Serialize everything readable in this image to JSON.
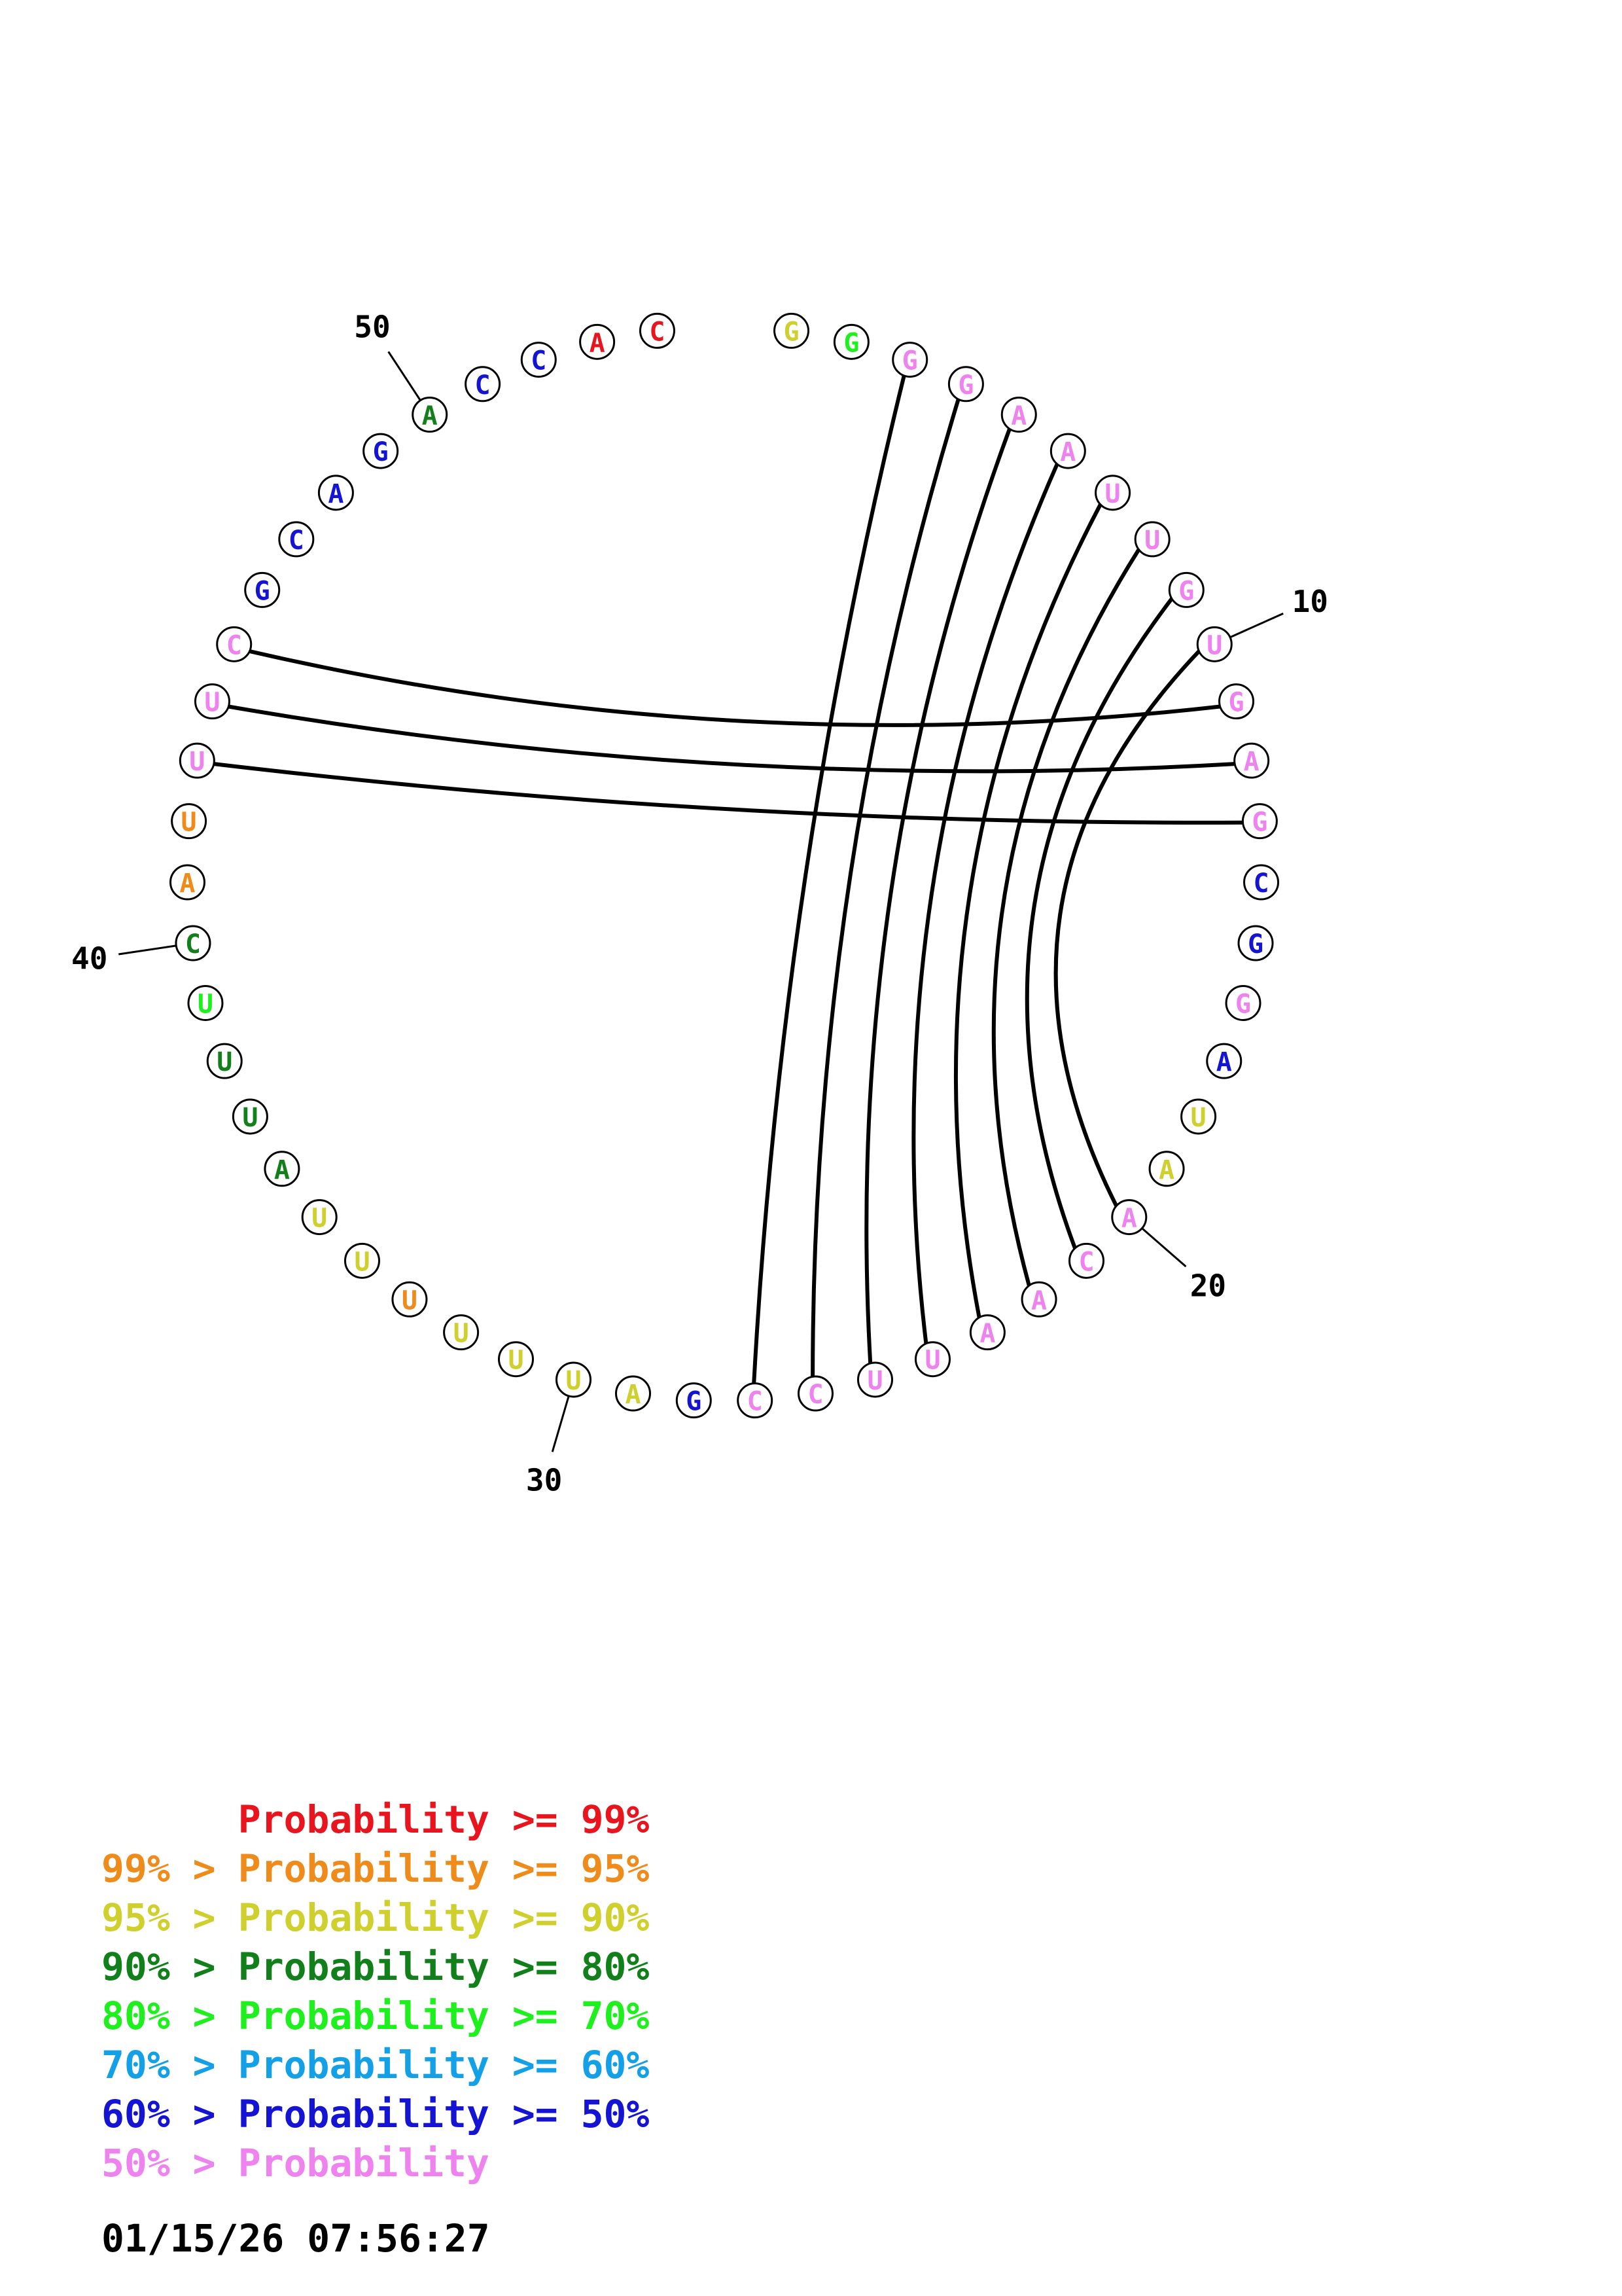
{
  "colors": {
    "red": "#e8141e",
    "orange": "#ef8b1b",
    "yellow": "#cfcf2e",
    "darkgreen": "#12801a",
    "green": "#1ef01e",
    "lightblue": "#14a0e6",
    "blue": "#1414d2",
    "pink": "#ee82ee"
  },
  "sequence": [
    {
      "letter": "G",
      "color": "yellow"
    },
    {
      "letter": "G",
      "color": "green"
    },
    {
      "letter": "G",
      "color": "pink"
    },
    {
      "letter": "G",
      "color": "pink"
    },
    {
      "letter": "A",
      "color": "pink"
    },
    {
      "letter": "A",
      "color": "pink"
    },
    {
      "letter": "U",
      "color": "pink"
    },
    {
      "letter": "U",
      "color": "pink"
    },
    {
      "letter": "G",
      "color": "pink"
    },
    {
      "letter": "U",
      "color": "pink"
    },
    {
      "letter": "G",
      "color": "pink"
    },
    {
      "letter": "A",
      "color": "pink"
    },
    {
      "letter": "G",
      "color": "pink"
    },
    {
      "letter": "C",
      "color": "blue"
    },
    {
      "letter": "G",
      "color": "blue"
    },
    {
      "letter": "G",
      "color": "pink"
    },
    {
      "letter": "A",
      "color": "blue"
    },
    {
      "letter": "U",
      "color": "yellow"
    },
    {
      "letter": "A",
      "color": "yellow"
    },
    {
      "letter": "A",
      "color": "pink"
    },
    {
      "letter": "C",
      "color": "pink"
    },
    {
      "letter": "A",
      "color": "pink"
    },
    {
      "letter": "A",
      "color": "pink"
    },
    {
      "letter": "U",
      "color": "pink"
    },
    {
      "letter": "U",
      "color": "pink"
    },
    {
      "letter": "C",
      "color": "pink"
    },
    {
      "letter": "C",
      "color": "pink"
    },
    {
      "letter": "G",
      "color": "blue"
    },
    {
      "letter": "A",
      "color": "yellow"
    },
    {
      "letter": "U",
      "color": "yellow"
    },
    {
      "letter": "U",
      "color": "yellow"
    },
    {
      "letter": "U",
      "color": "yellow"
    },
    {
      "letter": "U",
      "color": "orange"
    },
    {
      "letter": "U",
      "color": "yellow"
    },
    {
      "letter": "U",
      "color": "yellow"
    },
    {
      "letter": "A",
      "color": "darkgreen"
    },
    {
      "letter": "U",
      "color": "darkgreen"
    },
    {
      "letter": "U",
      "color": "darkgreen"
    },
    {
      "letter": "U",
      "color": "green"
    },
    {
      "letter": "C",
      "color": "darkgreen"
    },
    {
      "letter": "A",
      "color": "orange"
    },
    {
      "letter": "U",
      "color": "orange"
    },
    {
      "letter": "U",
      "color": "pink"
    },
    {
      "letter": "U",
      "color": "pink"
    },
    {
      "letter": "C",
      "color": "pink"
    },
    {
      "letter": "G",
      "color": "blue"
    },
    {
      "letter": "C",
      "color": "blue"
    },
    {
      "letter": "A",
      "color": "blue"
    },
    {
      "letter": "G",
      "color": "blue"
    },
    {
      "letter": "A",
      "color": "darkgreen"
    },
    {
      "letter": "C",
      "color": "blue"
    },
    {
      "letter": "C",
      "color": "blue"
    },
    {
      "letter": "A",
      "color": "red"
    },
    {
      "letter": "C",
      "color": "red"
    }
  ],
  "pairs": [
    [
      3,
      27
    ],
    [
      4,
      26
    ],
    [
      5,
      25
    ],
    [
      6,
      24
    ],
    [
      7,
      23
    ],
    [
      8,
      22
    ],
    [
      9,
      21
    ],
    [
      10,
      20
    ],
    [
      11,
      45
    ],
    [
      12,
      44
    ],
    [
      13,
      43
    ]
  ],
  "ticks": [
    {
      "pos": 10,
      "label": "10"
    },
    {
      "pos": 20,
      "label": "20"
    },
    {
      "pos": 30,
      "label": "30"
    },
    {
      "pos": 40,
      "label": "40"
    },
    {
      "pos": 50,
      "label": "50"
    }
  ],
  "legend": [
    {
      "prefix": "",
      "text": "Probability >= 99%",
      "color": "red"
    },
    {
      "prefix": "99% > ",
      "text": "Probability >= 95%",
      "color": "orange"
    },
    {
      "prefix": "95% > ",
      "text": "Probability >= 90%",
      "color": "yellow"
    },
    {
      "prefix": "90% > ",
      "text": "Probability >= 80%",
      "color": "darkgreen"
    },
    {
      "prefix": "80% > ",
      "text": "Probability >= 70%",
      "color": "green"
    },
    {
      "prefix": "70% > ",
      "text": "Probability >= 60%",
      "color": "lightblue"
    },
    {
      "prefix": "60% > ",
      "text": "Probability >= 50%",
      "color": "blue"
    },
    {
      "prefix": "50% > ",
      "text": "Probability",
      "color": "pink"
    }
  ],
  "timestamp": "01/15/26 07:56:27"
}
